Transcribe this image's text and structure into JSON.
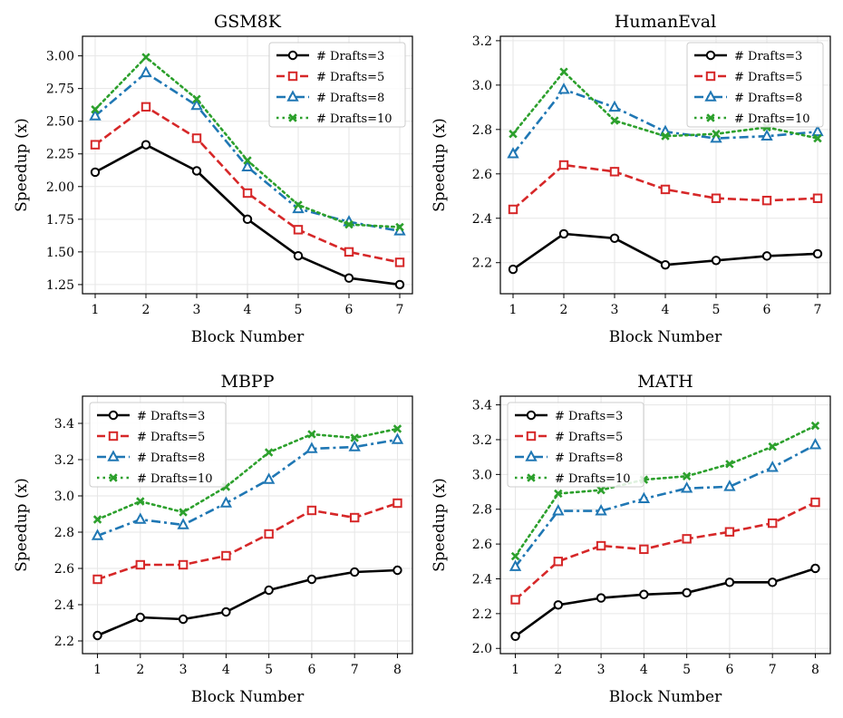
{
  "chart_data": [
    {
      "type": "line",
      "title": "GSM8K",
      "xlabel": "Block Number",
      "ylabel": "Speedup (x)",
      "x": [
        1,
        2,
        3,
        4,
        5,
        6,
        7
      ],
      "xlim": [
        0.75,
        7.25
      ],
      "ylim": [
        1.18,
        3.15
      ],
      "yticks": [
        1.25,
        1.5,
        1.75,
        2.0,
        2.25,
        2.5,
        2.75,
        3.0
      ],
      "ytick_format": 2,
      "legend_position": "top-right",
      "grid": true,
      "series": [
        {
          "name": "# Drafts=3",
          "color": "#000000",
          "dash": "solid",
          "marker": "circle",
          "values": [
            2.11,
            2.32,
            2.12,
            1.75,
            1.47,
            1.3,
            1.25
          ]
        },
        {
          "name": "# Drafts=5",
          "color": "#d62728",
          "dash": "dashed",
          "marker": "square",
          "values": [
            2.32,
            2.61,
            2.37,
            1.95,
            1.67,
            1.5,
            1.42
          ]
        },
        {
          "name": "# Drafts=8",
          "color": "#1f77b4",
          "dash": "dashdot",
          "marker": "triangle",
          "values": [
            2.54,
            2.87,
            2.62,
            2.15,
            1.83,
            1.73,
            1.66
          ]
        },
        {
          "name": "# Drafts=10",
          "color": "#2ca02c",
          "dash": "dotted",
          "marker": "x",
          "values": [
            2.59,
            2.99,
            2.67,
            2.2,
            1.86,
            1.71,
            1.69
          ]
        }
      ]
    },
    {
      "type": "line",
      "title": "HumanEval",
      "xlabel": "Block Number",
      "ylabel": "Speedup (x)",
      "x": [
        1,
        2,
        3,
        4,
        5,
        6,
        7
      ],
      "xlim": [
        0.75,
        7.25
      ],
      "ylim": [
        2.06,
        3.22
      ],
      "yticks": [
        2.2,
        2.4,
        2.6,
        2.8,
        3.0,
        3.2
      ],
      "ytick_format": 1,
      "legend_position": "top-right",
      "grid": true,
      "series": [
        {
          "name": "# Drafts=3",
          "color": "#000000",
          "dash": "solid",
          "marker": "circle",
          "values": [
            2.17,
            2.33,
            2.31,
            2.19,
            2.21,
            2.23,
            2.24
          ]
        },
        {
          "name": "# Drafts=5",
          "color": "#d62728",
          "dash": "dashed",
          "marker": "square",
          "values": [
            2.44,
            2.64,
            2.61,
            2.53,
            2.49,
            2.48,
            2.49
          ]
        },
        {
          "name": "# Drafts=8",
          "color": "#1f77b4",
          "dash": "dashdot",
          "marker": "triangle",
          "values": [
            2.69,
            2.98,
            2.9,
            2.79,
            2.76,
            2.77,
            2.79
          ]
        },
        {
          "name": "# Drafts=10",
          "color": "#2ca02c",
          "dash": "dotted",
          "marker": "x",
          "values": [
            2.78,
            3.06,
            2.84,
            2.77,
            2.78,
            2.81,
            2.76
          ]
        }
      ]
    },
    {
      "type": "line",
      "title": "MBPP",
      "xlabel": "Block Number",
      "ylabel": "Speedup (x)",
      "x": [
        1,
        2,
        3,
        4,
        5,
        6,
        7,
        8
      ],
      "xlim": [
        0.65,
        8.35
      ],
      "ylim": [
        2.13,
        3.55
      ],
      "yticks": [
        2.2,
        2.4,
        2.6,
        2.8,
        3.0,
        3.2,
        3.4
      ],
      "ytick_format": 1,
      "legend_position": "top-left",
      "grid": true,
      "series": [
        {
          "name": "# Drafts=3",
          "color": "#000000",
          "dash": "solid",
          "marker": "circle",
          "values": [
            2.23,
            2.33,
            2.32,
            2.36,
            2.48,
            2.54,
            2.58,
            2.59
          ]
        },
        {
          "name": "# Drafts=5",
          "color": "#d62728",
          "dash": "dashed",
          "marker": "square",
          "values": [
            2.54,
            2.62,
            2.62,
            2.67,
            2.79,
            2.92,
            2.88,
            2.96
          ]
        },
        {
          "name": "# Drafts=8",
          "color": "#1f77b4",
          "dash": "dashdot",
          "marker": "triangle",
          "values": [
            2.78,
            2.87,
            2.84,
            2.96,
            3.09,
            3.26,
            3.27,
            3.31
          ]
        },
        {
          "name": "# Drafts=10",
          "color": "#2ca02c",
          "dash": "dotted",
          "marker": "x",
          "values": [
            2.87,
            2.97,
            2.91,
            3.05,
            3.24,
            3.34,
            3.32,
            3.37
          ]
        }
      ]
    },
    {
      "type": "line",
      "title": "MATH",
      "xlabel": "Block Number",
      "ylabel": "Speedup (x)",
      "x": [
        1,
        2,
        3,
        4,
        5,
        6,
        7,
        8
      ],
      "xlim": [
        0.65,
        8.35
      ],
      "ylim": [
        1.97,
        3.45
      ],
      "yticks": [
        2.0,
        2.2,
        2.4,
        2.6,
        2.8,
        3.0,
        3.2,
        3.4
      ],
      "ytick_format": 1,
      "legend_position": "top-left",
      "grid": true,
      "series": [
        {
          "name": "# Drafts=3",
          "color": "#000000",
          "dash": "solid",
          "marker": "circle",
          "values": [
            2.07,
            2.25,
            2.29,
            2.31,
            2.32,
            2.38,
            2.38,
            2.46
          ]
        },
        {
          "name": "# Drafts=5",
          "color": "#d62728",
          "dash": "dashed",
          "marker": "square",
          "values": [
            2.28,
            2.5,
            2.59,
            2.57,
            2.63,
            2.67,
            2.72,
            2.84
          ]
        },
        {
          "name": "# Drafts=8",
          "color": "#1f77b4",
          "dash": "dashdot",
          "marker": "triangle",
          "values": [
            2.47,
            2.79,
            2.79,
            2.86,
            2.92,
            2.93,
            3.04,
            3.17
          ]
        },
        {
          "name": "# Drafts=10",
          "color": "#2ca02c",
          "dash": "dotted",
          "marker": "x",
          "values": [
            2.53,
            2.89,
            2.91,
            2.97,
            2.99,
            3.06,
            3.16,
            3.28
          ]
        }
      ]
    }
  ]
}
